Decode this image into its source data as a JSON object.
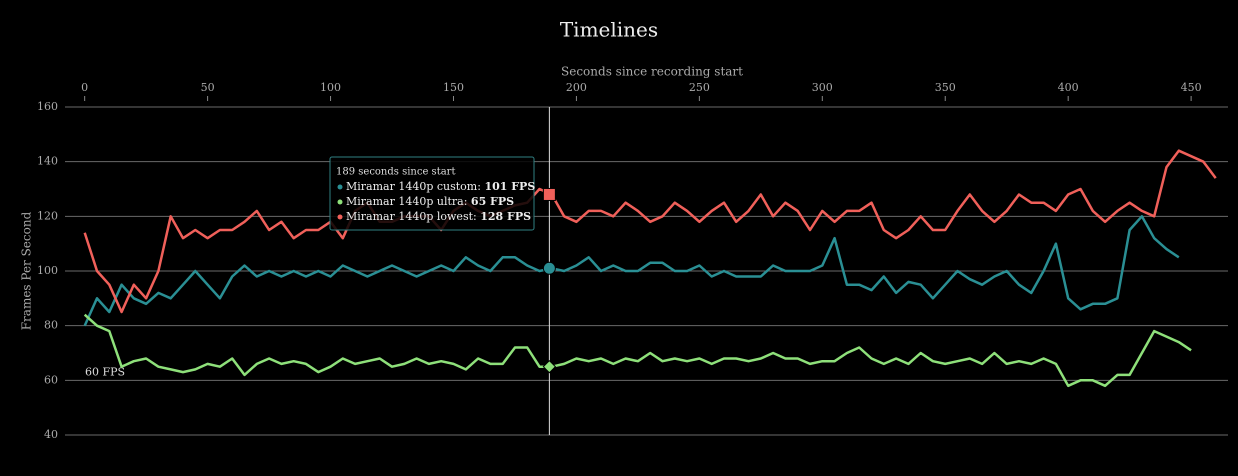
{
  "chart_data": {
    "type": "line",
    "title": "Timelines",
    "x_label": "Seconds since recording start",
    "y_label": "Frames Per Second",
    "x": [
      0,
      5,
      10,
      15,
      20,
      25,
      30,
      35,
      40,
      45,
      50,
      55,
      60,
      65,
      70,
      75,
      80,
      85,
      90,
      95,
      100,
      105,
      110,
      115,
      120,
      125,
      130,
      135,
      140,
      145,
      150,
      155,
      160,
      165,
      170,
      175,
      180,
      185,
      190,
      195,
      200,
      205,
      210,
      215,
      220,
      225,
      230,
      235,
      240,
      245,
      250,
      255,
      260,
      265,
      270,
      275,
      280,
      285,
      290,
      295,
      300,
      305,
      310,
      315,
      320,
      325,
      330,
      335,
      340,
      345,
      350,
      355,
      360,
      365,
      370,
      375,
      380,
      385,
      390,
      395,
      400,
      405,
      410,
      415,
      420,
      425,
      430,
      435,
      440,
      445,
      450,
      455,
      460
    ],
    "series": [
      {
        "name": "Miramar 1440p custom",
        "color": "#2a8f94",
        "values": [
          80,
          90,
          85,
          95,
          90,
          88,
          92,
          90,
          95,
          100,
          95,
          90,
          98,
          102,
          98,
          100,
          98,
          100,
          98,
          100,
          98,
          102,
          100,
          98,
          100,
          102,
          100,
          98,
          100,
          102,
          100,
          105,
          102,
          100,
          105,
          105,
          102,
          100,
          101,
          100,
          102,
          105,
          100,
          102,
          100,
          100,
          103,
          103,
          100,
          100,
          102,
          98,
          100,
          98,
          98,
          98,
          102,
          100,
          100,
          100,
          102,
          112,
          95,
          95,
          93,
          98,
          92,
          96,
          95,
          90,
          95,
          100,
          97,
          95,
          98,
          100,
          95,
          92,
          100,
          110,
          90,
          86,
          88,
          88,
          90,
          115,
          120,
          112,
          108,
          105,
          null,
          null,
          null
        ]
      },
      {
        "name": "Miramar 1440p ultra",
        "color": "#8ee07a",
        "values": [
          84,
          80,
          78,
          65,
          67,
          68,
          65,
          64,
          63,
          64,
          66,
          65,
          68,
          62,
          66,
          68,
          66,
          67,
          66,
          63,
          65,
          68,
          66,
          67,
          68,
          65,
          66,
          68,
          66,
          67,
          66,
          64,
          68,
          66,
          66,
          72,
          72,
          65,
          65,
          66,
          68,
          67,
          68,
          66,
          68,
          67,
          70,
          67,
          68,
          67,
          68,
          66,
          68,
          68,
          67,
          68,
          70,
          68,
          68,
          66,
          67,
          67,
          70,
          72,
          68,
          66,
          68,
          66,
          70,
          67,
          66,
          67,
          68,
          66,
          70,
          66,
          67,
          66,
          68,
          66,
          58,
          60,
          60,
          58,
          62,
          62,
          70,
          78,
          76,
          74,
          71,
          null,
          null
        ]
      },
      {
        "name": "Miramar 1440p lowest",
        "color": "#f0605a",
        "values": [
          114,
          100,
          95,
          85,
          95,
          90,
          100,
          120,
          112,
          115,
          112,
          115,
          115,
          118,
          122,
          115,
          118,
          112,
          115,
          115,
          118,
          112,
          122,
          125,
          118,
          118,
          120,
          120,
          120,
          115,
          122,
          125,
          122,
          120,
          122,
          124,
          125,
          130,
          128,
          120,
          118,
          122,
          122,
          120,
          125,
          122,
          118,
          120,
          125,
          122,
          118,
          122,
          125,
          118,
          122,
          128,
          120,
          125,
          122,
          115,
          122,
          118,
          122,
          122,
          125,
          115,
          112,
          115,
          120,
          115,
          115,
          122,
          128,
          122,
          118,
          122,
          128,
          125,
          125,
          122,
          128,
          130,
          122,
          118,
          122,
          125,
          122,
          120,
          138,
          144,
          142,
          140,
          134
        ]
      }
    ],
    "xlim": [
      -8,
      465
    ],
    "xticks": [
      0,
      50,
      100,
      150,
      200,
      250,
      300,
      350,
      400,
      450
    ],
    "ylim": [
      40,
      160
    ],
    "yticks": [
      40,
      60,
      80,
      100,
      120,
      140,
      160
    ],
    "grid": true,
    "annotation": {
      "value": 60,
      "label": "60 FPS"
    },
    "tooltip": {
      "x": 189,
      "title": "189 seconds since start",
      "entries": [
        {
          "label": "Miramar 1440p custom:",
          "value": 101,
          "value_label": "101 FPS"
        },
        {
          "label": "Miramar 1440p ultra:",
          "value": 65,
          "value_label": "65 FPS"
        },
        {
          "label": "Miramar 1440p lowest:",
          "value": 128,
          "value_label": "128 FPS"
        }
      ]
    }
  }
}
